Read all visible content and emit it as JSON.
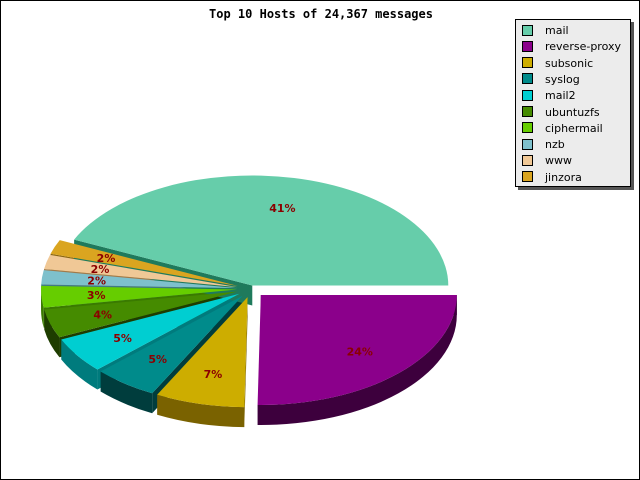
{
  "title": "Top 10 Hosts of 24,367 messages",
  "chart_data": {
    "type": "pie",
    "title": "Top 10 Hosts of 24,367 messages",
    "legend_position": "top-right",
    "slices": [
      {
        "label": "mail",
        "percent": 41,
        "color": "#66cdaa",
        "side": "#1f7a5c"
      },
      {
        "label": "reverse-proxy",
        "percent": 24,
        "color": "#8b008b",
        "side": "#3d003d"
      },
      {
        "label": "subsonic",
        "percent": 7,
        "color": "#cdad00",
        "side": "#7a6200"
      },
      {
        "label": "syslog",
        "percent": 5,
        "color": "#008b8b",
        "side": "#003d3d"
      },
      {
        "label": "mail2",
        "percent": 5,
        "color": "#00ced1",
        "side": "#007b7d"
      },
      {
        "label": "ubuntuzfs",
        "percent": 4,
        "color": "#458b00",
        "side": "#1e3d00"
      },
      {
        "label": "ciphermail",
        "percent": 3,
        "color": "#66cd00",
        "side": "#3a7a00"
      },
      {
        "label": "nzb",
        "percent": 2,
        "color": "#7ec0cc",
        "side": "#3f7a85"
      },
      {
        "label": "www",
        "percent": 2,
        "color": "#f0c896",
        "side": "#a07a4c"
      },
      {
        "label": "jinzora",
        "percent": 2,
        "color": "#daa520",
        "side": "#8a6510"
      }
    ]
  }
}
